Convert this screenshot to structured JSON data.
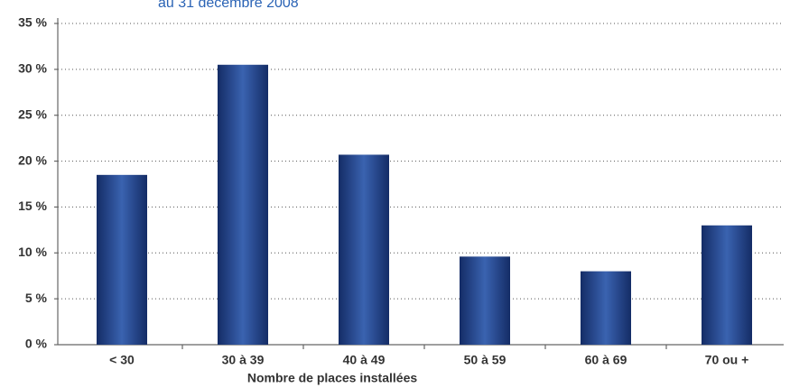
{
  "chart_data": {
    "type": "bar",
    "title": "au 31 décembre 2008",
    "x_label": "Nombre de places installées",
    "categories": [
      "< 30",
      "30 à 39",
      "40 à 49",
      "50 à 59",
      "60 à 69",
      "70 ou +"
    ],
    "values": [
      18.5,
      30.5,
      20.7,
      9.6,
      8.0,
      13.0
    ],
    "color": "#1f3f85",
    "ylim": [
      0,
      35
    ],
    "yticks": [
      {
        "value": 0,
        "label": "0 %"
      },
      {
        "value": 5,
        "label": "5 %"
      },
      {
        "value": 10,
        "label": "10 %"
      },
      {
        "value": 15,
        "label": "15 %"
      },
      {
        "value": 20,
        "label": "20 %"
      },
      {
        "value": 25,
        "label": "25 %"
      },
      {
        "value": 30,
        "label": "30 %"
      },
      {
        "value": 35,
        "label": "35 %"
      }
    ],
    "grid": true
  }
}
